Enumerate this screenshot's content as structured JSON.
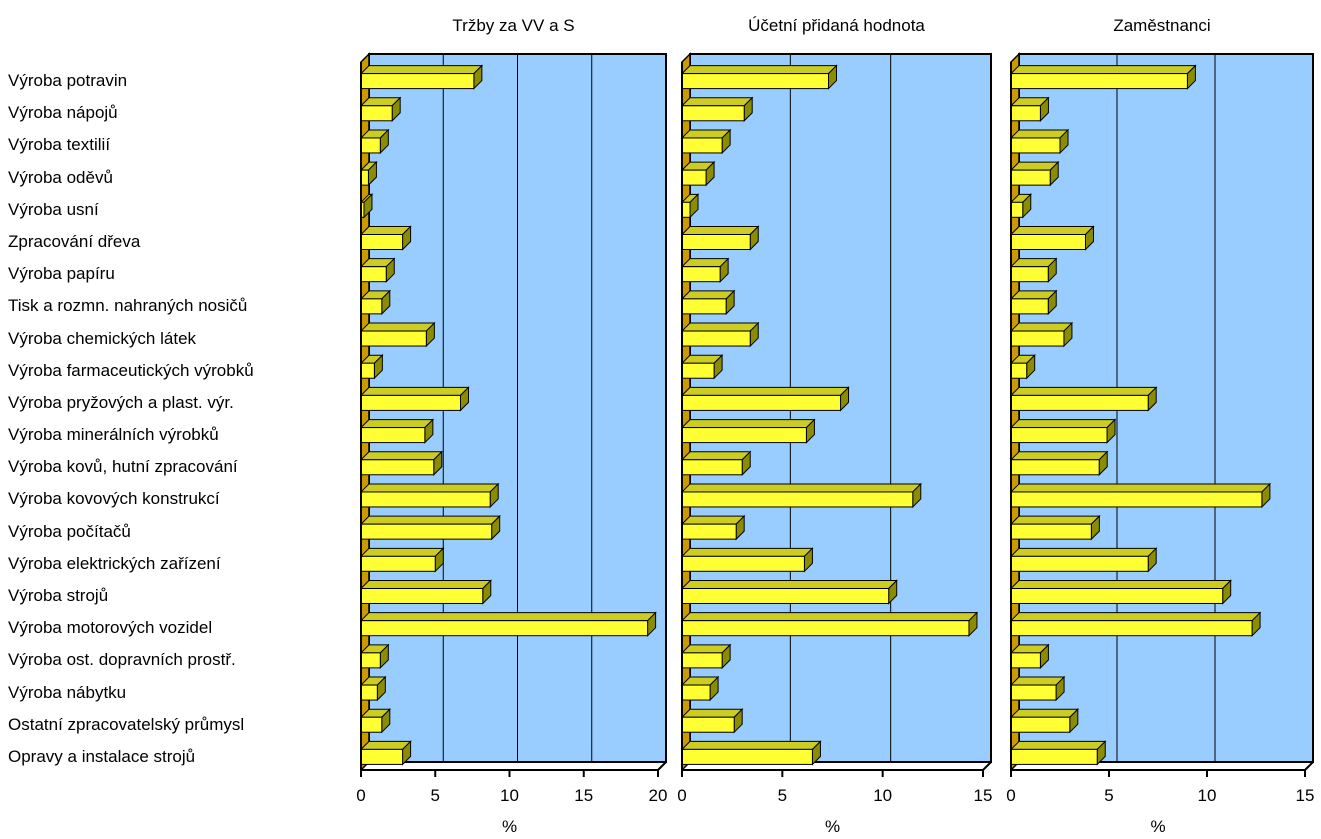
{
  "chart_data": {
    "type": "bar",
    "orientation": "horizontal",
    "style": "3d",
    "colors": {
      "bar": "#ffff33",
      "bar_dark": "#8c8c00",
      "bar_top": "#cccc22",
      "plot_bg": "#99ccff",
      "floor": "#cc9900"
    },
    "categories": [
      "Výroba potravin",
      "Výroba nápojů",
      "Výroba textilií",
      "Výroba oděvů",
      "Výroba usní",
      "Zpracování dřeva",
      "Výroba papíru",
      "Tisk a rozmn. nahraných nosičů",
      "Výroba chemických látek",
      "Výroba farmaceutických výrobků",
      "Výroba pryžových a plast. výr.",
      "Výroba minerálních výrobků",
      "Výroba kovů, hutní zpracování",
      "Výroba kovových konstrukcí",
      "Výroba počítačů",
      "Výroba elektrických zařízení",
      "Výroba strojů",
      "Výroba motorových vozidel",
      "Výroba ost. dopravních prostř.",
      "Výroba nábytku",
      "Ostatní zpracovatelský průmysl",
      "Opravy a instalace strojů"
    ],
    "panels": [
      {
        "title": "Tržby za VV a S",
        "xlabel": "%",
        "xlim": [
          0,
          20
        ],
        "ticks": [
          0,
          5,
          10,
          15,
          20
        ],
        "grid": true,
        "values": [
          7.6,
          2.1,
          1.3,
          0.5,
          0.2,
          2.8,
          1.7,
          1.4,
          4.4,
          0.9,
          6.7,
          4.3,
          4.9,
          8.7,
          8.8,
          5.0,
          8.2,
          19.3,
          1.3,
          1.1,
          1.4,
          2.8
        ]
      },
      {
        "title": "Účetní přidaná hodnota",
        "xlabel": "%",
        "xlim": [
          0,
          15
        ],
        "ticks": [
          0,
          5,
          10,
          15
        ],
        "grid": true,
        "values": [
          7.3,
          3.1,
          2.0,
          1.2,
          0.4,
          3.4,
          1.9,
          2.2,
          3.4,
          1.6,
          7.9,
          6.2,
          3.0,
          11.5,
          2.7,
          6.1,
          10.3,
          14.3,
          2.0,
          1.4,
          2.6,
          6.5
        ]
      },
      {
        "title": "Zaměstnanci",
        "xlabel": "%",
        "xlim": [
          0,
          15
        ],
        "ticks": [
          0,
          5,
          10,
          15
        ],
        "grid": true,
        "values": [
          9.0,
          1.5,
          2.5,
          2.0,
          0.6,
          3.8,
          1.9,
          1.9,
          2.7,
          0.8,
          7.0,
          4.9,
          4.5,
          12.8,
          4.1,
          7.0,
          10.8,
          12.3,
          1.5,
          2.3,
          3.0,
          4.4
        ]
      }
    ]
  }
}
